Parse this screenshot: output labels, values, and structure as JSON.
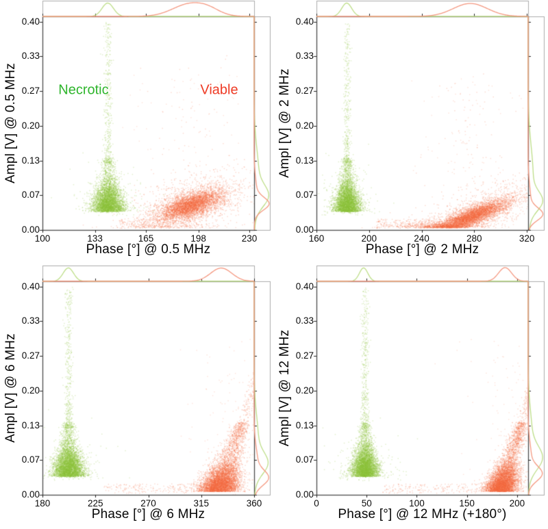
{
  "figure": {
    "background": "#ffffff",
    "scatter_green": "#8cc03a",
    "scatter_red": "#f36a3e",
    "density_green": "#bcdd86",
    "density_red": "#f4977f",
    "axis_border_color": "#4a4a4a",
    "marginal_border_color": "#ababab",
    "tick_color": "#222222",
    "necrotic_label_color": "#2eb52c",
    "viable_label_color": "#ee3a24"
  },
  "chart_data": [
    {
      "type": "scatter",
      "id": "subplot-0p5mhz",
      "xlabel": "Phase [°] @ 0.5 MHz",
      "ylabel": "Ampl [V] @ 0.5 MHz",
      "xlim": [
        100,
        233
      ],
      "ylim": [
        0,
        0.41
      ],
      "xticks": [
        {
          "v": 100,
          "label": "100"
        },
        {
          "v": 133,
          "label": "133"
        },
        {
          "v": 165,
          "label": "165"
        },
        {
          "v": 198,
          "label": "198"
        },
        {
          "v": 230,
          "label": "230"
        }
      ],
      "yticks": [
        {
          "v": 0,
          "label": "0.00"
        },
        {
          "v": 0.0667,
          "label": "0.07"
        },
        {
          "v": 0.1333,
          "label": "0.13"
        },
        {
          "v": 0.2,
          "label": "0.20"
        },
        {
          "v": 0.2667,
          "label": "0.27"
        },
        {
          "v": 0.3333,
          "label": "0.33"
        },
        {
          "v": 0.4,
          "label": "0.40"
        }
      ],
      "annotations": [
        {
          "text": "Necrotic",
          "color": "#2eb52c",
          "fx": 0.194,
          "fy": 0.346
        },
        {
          "text": "Viable",
          "color": "#ee3a24",
          "fx": 0.835,
          "fy": 0.346
        }
      ],
      "series": [
        {
          "name": "Necrotic",
          "kind": "flame",
          "cx": 141,
          "sx": 4.6,
          "n": 4800
        },
        {
          "name": "Viable",
          "kind": "blob",
          "cx": 193,
          "cy": 0.048,
          "sx": 10,
          "sy": 0.012,
          "tilt": 0.0009,
          "n": 5600,
          "band": [
            148,
            180
          ]
        }
      ],
      "marginal_top": {
        "green": [
          {
            "mu": 141,
            "sigma": 3.6,
            "amp": 0.93
          }
        ],
        "red": [
          {
            "mu": 193,
            "sigma": 11,
            "amp": 0.88
          },
          {
            "mu": 205,
            "sigma": 7,
            "amp": 0.25
          }
        ]
      },
      "marginal_right": {
        "green": [
          {
            "mu": 0.065,
            "sigma": 0.02,
            "amp": 0.78
          },
          {
            "mu": 0.105,
            "sigma": 0.05,
            "amp": 0.32
          }
        ],
        "red": [
          {
            "mu": 0.05,
            "sigma": 0.012,
            "amp": 0.9
          },
          {
            "mu": 0.07,
            "sigma": 0.028,
            "amp": 0.18
          }
        ]
      }
    },
    {
      "type": "scatter",
      "id": "subplot-2mhz",
      "xlabel": "Phase [°] @ 2 MHz",
      "ylabel": "Ampl [V] @ 2 MHz",
      "xlim": [
        160,
        321
      ],
      "ylim": [
        0,
        0.41
      ],
      "xticks": [
        {
          "v": 160,
          "label": "160"
        },
        {
          "v": 200,
          "label": "200"
        },
        {
          "v": 240,
          "label": "240"
        },
        {
          "v": 280,
          "label": "280"
        },
        {
          "v": 320,
          "label": "320"
        }
      ],
      "yticks": [
        {
          "v": 0,
          "label": "0.00"
        },
        {
          "v": 0.0667,
          "label": "0.07"
        },
        {
          "v": 0.1333,
          "label": "0.13"
        },
        {
          "v": 0.2,
          "label": "0.20"
        },
        {
          "v": 0.2667,
          "label": "0.27"
        },
        {
          "v": 0.3333,
          "label": "0.33"
        },
        {
          "v": 0.4,
          "label": "0.40"
        }
      ],
      "annotations": [],
      "series": [
        {
          "name": "Necrotic",
          "kind": "flame",
          "cx": 183,
          "sx": 4.6,
          "n": 4800
        },
        {
          "name": "Viable",
          "kind": "blob",
          "cx": 277,
          "cy": 0.026,
          "sx": 14,
          "sy": 0.009,
          "tilt": 0.001,
          "n": 6200,
          "band": [
            205,
            252
          ]
        }
      ],
      "marginal_top": {
        "green": [
          {
            "mu": 183,
            "sigma": 3.8,
            "amp": 0.93
          }
        ],
        "red": [
          {
            "mu": 277,
            "sigma": 13,
            "amp": 0.9
          }
        ]
      },
      "marginal_right": {
        "green": [
          {
            "mu": 0.055,
            "sigma": 0.018,
            "amp": 0.75
          },
          {
            "mu": 0.1,
            "sigma": 0.06,
            "amp": 0.35
          }
        ],
        "red": [
          {
            "mu": 0.03,
            "sigma": 0.012,
            "amp": 0.9
          },
          {
            "mu": 0.055,
            "sigma": 0.03,
            "amp": 0.18
          }
        ]
      }
    },
    {
      "type": "scatter",
      "id": "subplot-6mhz",
      "xlabel": "Phase [°] @ 6 MHz",
      "ylabel": "Ampl [V] @ 6 MHz",
      "xlim": [
        180,
        360
      ],
      "ylim": [
        0,
        0.41
      ],
      "xticks": [
        {
          "v": 180,
          "label": "180"
        },
        {
          "v": 225,
          "label": "225"
        },
        {
          "v": 270,
          "label": "270"
        },
        {
          "v": 315,
          "label": "315"
        },
        {
          "v": 360,
          "label": "360"
        }
      ],
      "yticks": [
        {
          "v": 0,
          "label": "0.00"
        },
        {
          "v": 0.0667,
          "label": "0.07"
        },
        {
          "v": 0.1333,
          "label": "0.13"
        },
        {
          "v": 0.2,
          "label": "0.20"
        },
        {
          "v": 0.2667,
          "label": "0.27"
        },
        {
          "v": 0.3333,
          "label": "0.33"
        },
        {
          "v": 0.4,
          "label": "0.40"
        }
      ],
      "annotations": [],
      "series": [
        {
          "name": "Necrotic",
          "kind": "flame",
          "cx": 202,
          "sx": 6.2,
          "n": 5200
        },
        {
          "name": "Viable",
          "kind": "jcurve",
          "x0": 327,
          "bend": 160,
          "s0": 9,
          "slim": 45,
          "n": 6200,
          "band": [
            232,
            308
          ]
        }
      ],
      "marginal_top": {
        "green": [
          {
            "mu": 202,
            "sigma": 4.4,
            "amp": 0.93
          }
        ],
        "red": [
          {
            "mu": 332,
            "sigma": 9,
            "amp": 0.92
          }
        ]
      },
      "marginal_right": {
        "green": [
          {
            "mu": 0.06,
            "sigma": 0.02,
            "amp": 0.75
          },
          {
            "mu": 0.1,
            "sigma": 0.05,
            "amp": 0.3
          }
        ],
        "red": [
          {
            "mu": 0.032,
            "sigma": 0.014,
            "amp": 0.85
          },
          {
            "mu": 0.06,
            "sigma": 0.03,
            "amp": 0.25
          }
        ]
      }
    },
    {
      "type": "scatter",
      "id": "subplot-12mhz",
      "xlabel": "Phase [°] @ 12 MHz (+180°)",
      "ylabel": "Ampl [V] @ 12 MHz",
      "xlim": [
        0,
        211
      ],
      "ylim": [
        0,
        0.41
      ],
      "xticks": [
        {
          "v": 0,
          "label": "0"
        },
        {
          "v": 50,
          "label": "50"
        },
        {
          "v": 100,
          "label": "100"
        },
        {
          "v": 150,
          "label": "150"
        },
        {
          "v": 200,
          "label": "200"
        }
      ],
      "yticks": [
        {
          "v": 0,
          "label": "0.00"
        },
        {
          "v": 0.0667,
          "label": "0.07"
        },
        {
          "v": 0.1333,
          "label": "0.13"
        },
        {
          "v": 0.2,
          "label": "0.20"
        },
        {
          "v": 0.2667,
          "label": "0.27"
        },
        {
          "v": 0.3333,
          "label": "0.33"
        },
        {
          "v": 0.4,
          "label": "0.40"
        }
      ],
      "annotations": [],
      "series": [
        {
          "name": "Necrotic",
          "kind": "flame",
          "cx": 48,
          "sx": 6.2,
          "n": 5200
        },
        {
          "name": "Viable",
          "kind": "jcurve",
          "x0": 181,
          "bend": 165,
          "s0": 8.5,
          "slim": 40,
          "n": 6200,
          "band": [
            65,
            160
          ]
        }
      ],
      "marginal_top": {
        "green": [
          {
            "mu": 47,
            "sigma": 4.2,
            "amp": 0.93
          }
        ],
        "red": [
          {
            "mu": 188,
            "sigma": 6.5,
            "amp": 0.95
          }
        ]
      },
      "marginal_right": {
        "green": [
          {
            "mu": 0.07,
            "sigma": 0.022,
            "amp": 0.8
          },
          {
            "mu": 0.11,
            "sigma": 0.05,
            "amp": 0.28
          }
        ],
        "red": [
          {
            "mu": 0.04,
            "sigma": 0.014,
            "amp": 0.85
          },
          {
            "mu": 0.07,
            "sigma": 0.03,
            "amp": 0.22
          }
        ]
      }
    }
  ]
}
